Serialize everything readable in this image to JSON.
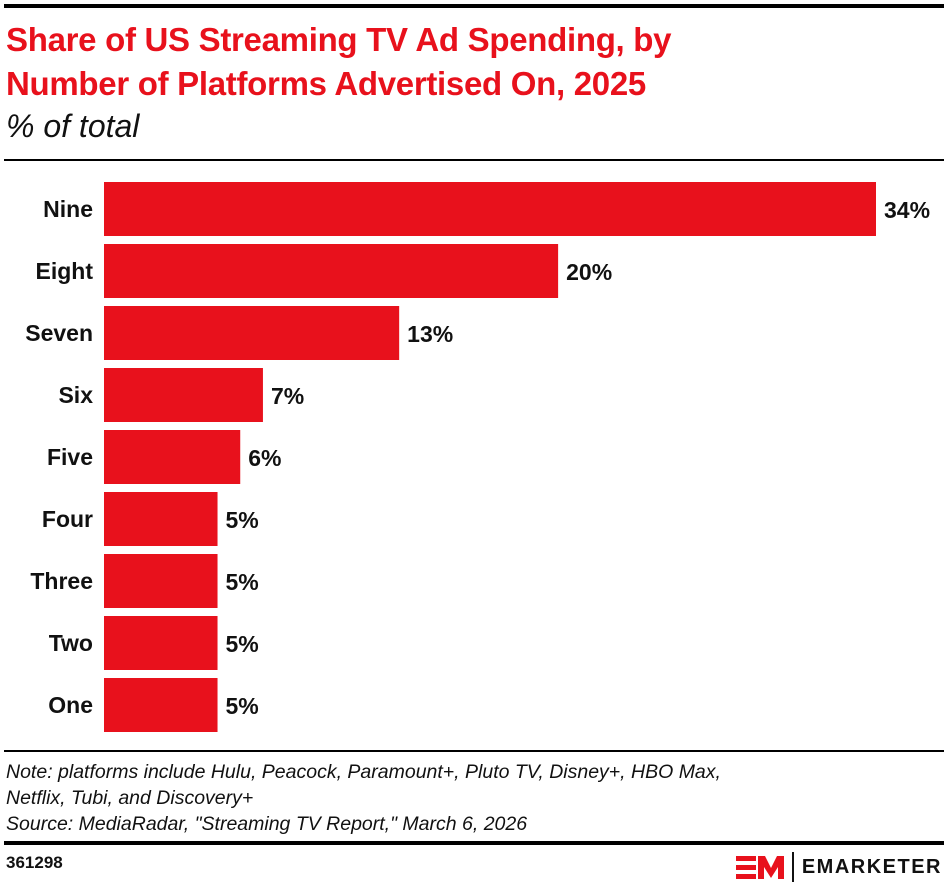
{
  "header": {
    "title_line1": "Share of US Streaming TV Ad Spending, by",
    "title_line2": "Number of Platforms Advertised On, 2025",
    "subtitle": "% of total"
  },
  "chart_data": {
    "type": "bar",
    "orientation": "horizontal",
    "categories": [
      "Nine",
      "Eight",
      "Seven",
      "Six",
      "Five",
      "Four",
      "Three",
      "Two",
      "One"
    ],
    "values": [
      34,
      20,
      13,
      7,
      6,
      5,
      5,
      5,
      5
    ],
    "value_suffix": "%",
    "xlim": [
      0,
      34
    ],
    "grid": false,
    "bar_color": "#e8111c"
  },
  "footer": {
    "note_line1": "Note: platforms include Hulu, Peacock, Paramount+, Pluto TV, Disney+, HBO Max,",
    "note_line2": "Netflix, Tubi, and Discovery+",
    "source": "Source: MediaRadar, \"Streaming TV Report,\" March 6, 2026",
    "chart_id": "361298",
    "brand": "EMARKETER",
    "brand_color": "#e8111c"
  }
}
